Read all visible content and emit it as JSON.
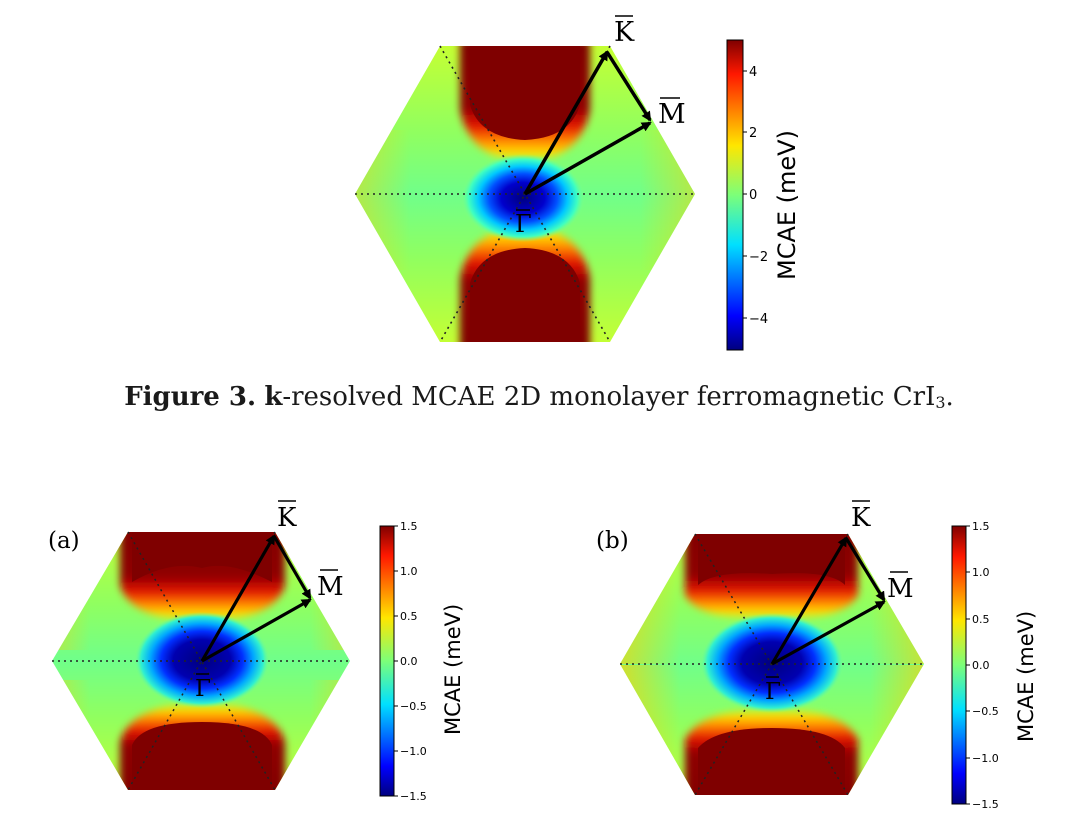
{
  "figure3": {
    "caption_label": "Figure 3.",
    "caption_bold_k": "k",
    "caption_text": "-resolved MCAE 2D monolayer ferromagnetic CrI",
    "caption_sub": "3",
    "caption_end": "."
  },
  "figure4": {
    "panel_a_label": "(a)",
    "panel_b_label": "(b)"
  },
  "point_labels": {
    "K": "K",
    "M": "M",
    "Gamma": "Γ"
  },
  "colorbar_label": "MCAE (meV)",
  "chart_data": [
    {
      "type": "heatmap",
      "description": "k-resolved MCAE, Brillouin zone",
      "colorbar": {
        "label": "MCAE (meV)",
        "range": [
          -5,
          5
        ],
        "ticks": [
          4,
          2,
          0,
          -2,
          -4
        ],
        "tick_labels": [
          "4",
          "2",
          "0",
          "−2",
          "−4"
        ],
        "colormap": "jet"
      },
      "points": [
        "K",
        "M",
        "Γ"
      ]
    },
    {
      "type": "heatmap",
      "panel": "(a)",
      "colorbar": {
        "label": "MCAE (meV)",
        "range": [
          -1.5,
          1.5
        ],
        "ticks": [
          1.5,
          1.0,
          0.5,
          0.0,
          -0.5,
          -1.0,
          -1.5
        ],
        "tick_labels": [
          "1.5",
          "1.0",
          "0.5",
          "0.0",
          "−0.5",
          "−1.0",
          "−1.5"
        ],
        "colormap": "jet"
      },
      "points": [
        "K",
        "M",
        "Γ"
      ]
    },
    {
      "type": "heatmap",
      "panel": "(b)",
      "colorbar": {
        "label": "MCAE (meV)",
        "range": [
          -1.5,
          1.5
        ],
        "ticks": [
          1.5,
          1.0,
          0.5,
          0.0,
          -0.5,
          -1.0,
          -1.5
        ],
        "tick_labels": [
          "1.5",
          "1.0",
          "0.5",
          "0.0",
          "−0.5",
          "−1.0",
          "−1.5"
        ],
        "colormap": "jet"
      },
      "points": [
        "K",
        "M",
        "Γ"
      ]
    }
  ]
}
